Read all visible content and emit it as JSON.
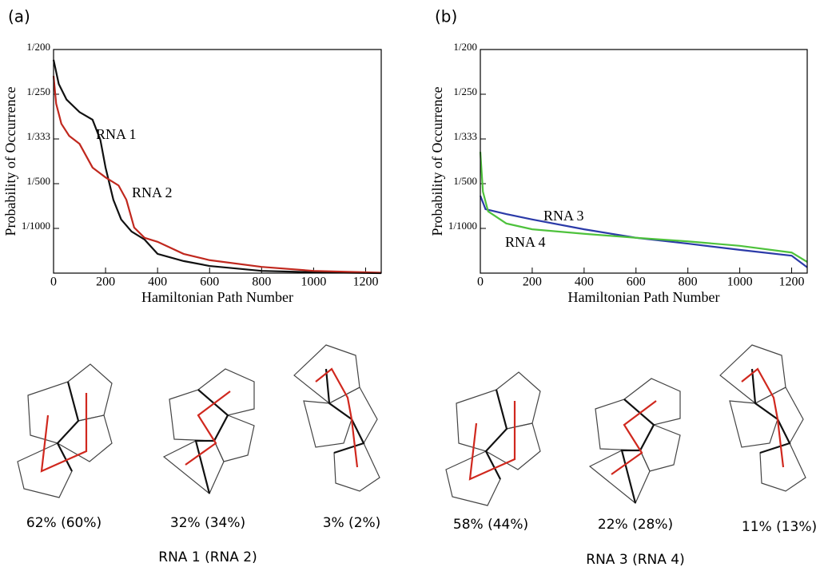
{
  "chart_data": [
    {
      "type": "line",
      "title": "(a)",
      "x_label": "Hamiltonian Path Number",
      "y_label": "Probability of Occurrence",
      "xlim": [
        0,
        1260
      ],
      "xticks": [
        0,
        200,
        400,
        600,
        800,
        1000,
        1200
      ],
      "ylim": [
        0,
        0.005
      ],
      "yticks": [
        {
          "value": 0.001,
          "label": "1/1000"
        },
        {
          "value": 0.002,
          "label": "1/500"
        },
        {
          "value": 0.003,
          "label": "1/333"
        },
        {
          "value": 0.004,
          "label": "1/250"
        },
        {
          "value": 0.005,
          "label": "1/200"
        }
      ],
      "series": [
        {
          "name": "RNA 1",
          "color": "#111111",
          "x": [
            0,
            20,
            50,
            100,
            150,
            180,
            200,
            230,
            260,
            300,
            350,
            400,
            500,
            600,
            800,
            1000,
            1260
          ],
          "values": [
            0.00477,
            0.00423,
            0.00388,
            0.0036,
            0.00343,
            0.00298,
            0.00236,
            0.00164,
            0.0012,
            0.00093,
            0.00075,
            0.00043,
            0.00027,
            0.00016,
            5e-05,
            2e-05,
            0
          ]
        },
        {
          "name": "RNA 2",
          "color": "#c0281e",
          "x": [
            0,
            10,
            30,
            60,
            100,
            150,
            200,
            250,
            280,
            310,
            350,
            400,
            500,
            600,
            800,
            1000,
            1260
          ],
          "values": [
            0.00441,
            0.00379,
            0.00334,
            0.00307,
            0.00289,
            0.00236,
            0.00214,
            0.00196,
            0.00164,
            0.00102,
            0.00079,
            0.0007,
            0.00043,
            0.00029,
            0.00014,
            5e-05,
            1e-05
          ]
        }
      ]
    },
    {
      "type": "line",
      "title": "(b)",
      "x_label": "Hamiltonian Path Number",
      "y_label": "Probability of Occurrence",
      "xlim": [
        0,
        1260
      ],
      "xticks": [
        0,
        200,
        400,
        600,
        800,
        1000,
        1200
      ],
      "ylim": [
        0,
        0.005
      ],
      "yticks": [
        {
          "value": 0.001,
          "label": "1/1000"
        },
        {
          "value": 0.002,
          "label": "1/500"
        },
        {
          "value": 0.003,
          "label": "1/333"
        },
        {
          "value": 0.004,
          "label": "1/250"
        },
        {
          "value": 0.005,
          "label": "1/200"
        }
      ],
      "series": [
        {
          "name": "RNA 3",
          "color": "#2b3aa8",
          "x": [
            0,
            20,
            100,
            200,
            400,
            600,
            800,
            1000,
            1200,
            1260
          ],
          "values": [
            0.00173,
            0.00143,
            0.00132,
            0.0012,
            0.00098,
            0.00079,
            0.00066,
            0.00052,
            0.00039,
            0.00013
          ]
        },
        {
          "name": "RNA 4",
          "color": "#4ec23c",
          "x": [
            0,
            10,
            30,
            100,
            200,
            400,
            600,
            800,
            1000,
            1200,
            1260
          ],
          "values": [
            0.00271,
            0.00182,
            0.00138,
            0.00111,
            0.00098,
            0.00088,
            0.00079,
            0.00071,
            0.00061,
            0.00046,
            0.00025
          ]
        }
      ]
    }
  ],
  "structures": [
    {
      "group_label": "RNA 1 (RNA 2)",
      "percentages": [
        "62% (60%)",
        "32% (34%)",
        "3% (2%)"
      ]
    },
    {
      "group_label": "RNA 3 (RNA 4)",
      "percentages": [
        "58% (44%)",
        "22% (28%)",
        "11% (13%)"
      ]
    }
  ]
}
